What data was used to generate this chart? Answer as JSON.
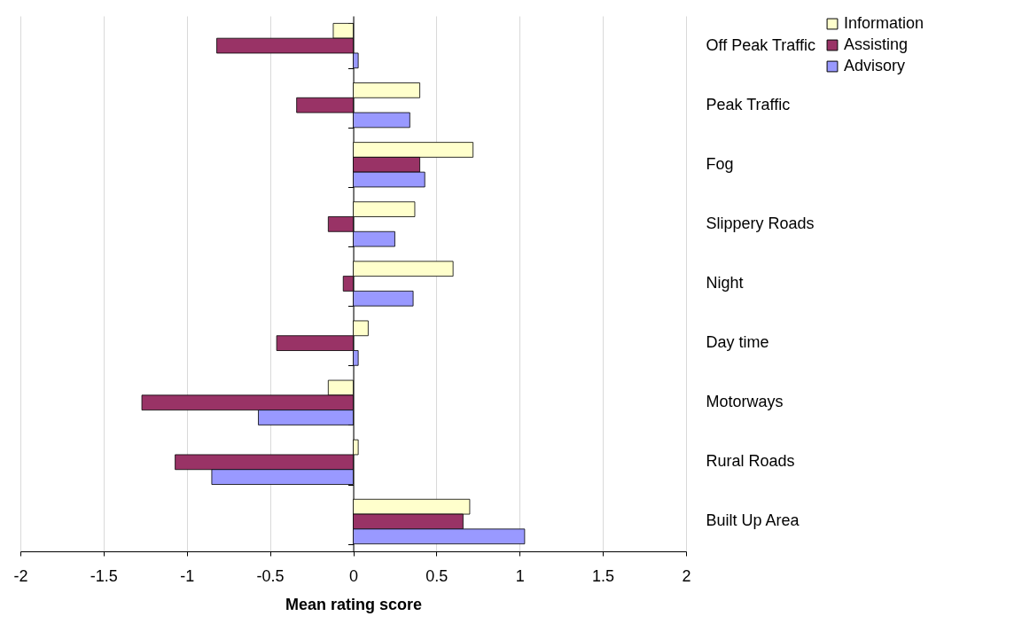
{
  "chart_data": {
    "type": "bar",
    "orientation": "horizontal",
    "xlabel": "Mean rating score",
    "categories": [
      "Off Peak Traffic",
      "Peak Traffic",
      "Fog",
      "Slippery Roads",
      "Night",
      "Day time",
      "Motorways",
      "Rural Roads",
      "Built Up Area"
    ],
    "series": [
      {
        "name": "Information",
        "color": "#ffffcc",
        "values": [
          -0.12,
          0.4,
          0.72,
          0.37,
          0.6,
          0.09,
          -0.15,
          0.03,
          0.7
        ]
      },
      {
        "name": "Assisting",
        "color": "#993366",
        "values": [
          -0.82,
          -0.34,
          0.4,
          -0.15,
          -0.06,
          -0.46,
          -1.27,
          -1.07,
          0.66
        ]
      },
      {
        "name": "Advisory",
        "color": "#9999ff",
        "values": [
          0.03,
          0.34,
          0.43,
          0.25,
          0.36,
          0.03,
          -0.57,
          -0.85,
          1.03
        ]
      }
    ],
    "xlim": [
      -2,
      2
    ],
    "xticks": [
      -2,
      -1.5,
      -1,
      -0.5,
      0,
      0.5,
      1,
      1.5,
      2
    ],
    "grid": "x",
    "legend": "top right"
  }
}
